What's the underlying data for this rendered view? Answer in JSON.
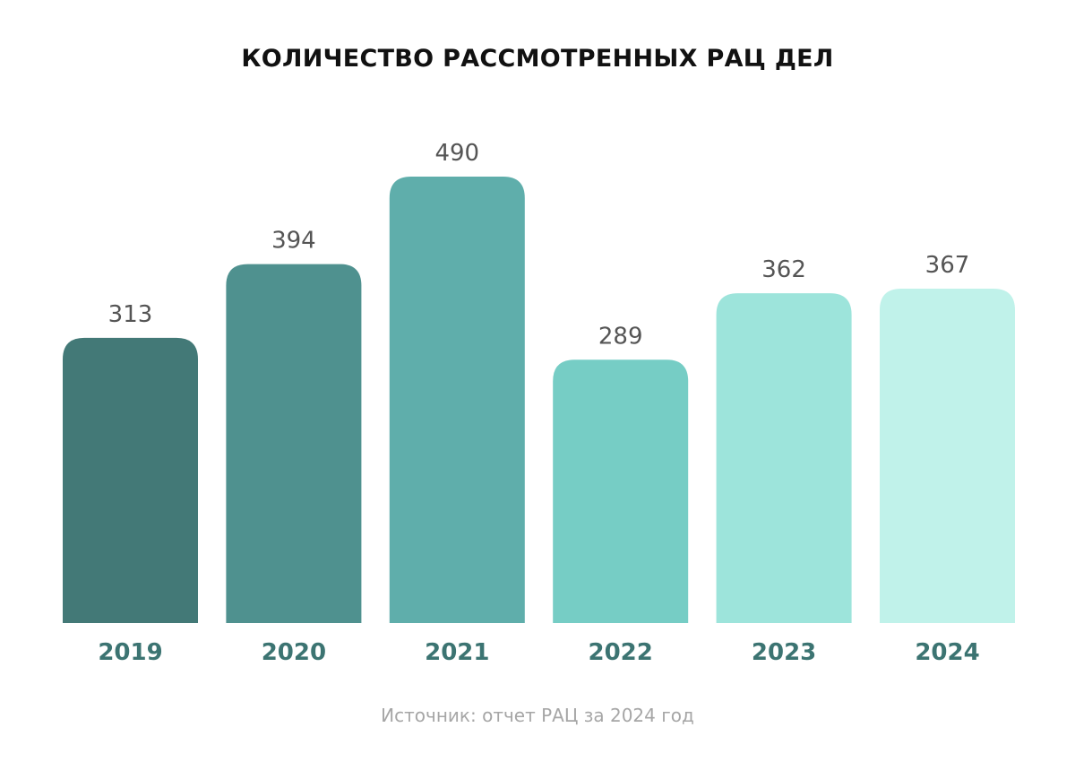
{
  "chart_data": {
    "type": "bar",
    "title": "КОЛИЧЕСТВО РАССМОТРЕННЫХ РАЦ ДЕЛ",
    "categories": [
      "2019",
      "2020",
      "2021",
      "2022",
      "2023",
      "2024"
    ],
    "values": [
      313,
      394,
      490,
      289,
      362,
      367
    ],
    "bar_colors": [
      "#437977",
      "#4f918f",
      "#5faeab",
      "#76cdc5",
      "#9de4db",
      "#c0f2ea"
    ],
    "label_color": "#555555",
    "category_color": "#3c7472",
    "xlabel": "",
    "ylabel": "",
    "ylim": [
      0,
      490
    ],
    "grid": false,
    "legend": "none"
  },
  "source": "Источник: отчет РАЦ за 2024 год"
}
